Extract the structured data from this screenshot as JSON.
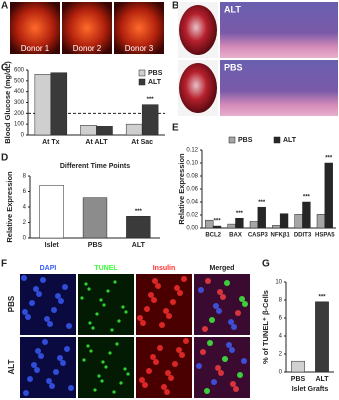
{
  "panels": {
    "A": {
      "letter": "A",
      "images": [
        "Donor 1",
        "Donor 2",
        "Donor 3"
      ]
    },
    "B": {
      "letter": "B",
      "images": [
        "ALT",
        "PBS"
      ]
    },
    "F": {
      "letter": "F",
      "columns": [
        "DAPI",
        "TUNEL",
        "Insulin",
        "Merged"
      ],
      "rows": [
        "PBS",
        "ALT"
      ]
    }
  },
  "chart_data": [
    {
      "panel": "C",
      "type": "bar",
      "ylabel": "Blood Glucose (mg/dL)",
      "categories": [
        "At Tx",
        "At ALT",
        "At Sac"
      ],
      "series": [
        {
          "name": "PBS",
          "color": "#cfcfcf",
          "values": [
            560,
            90,
            100
          ],
          "significance": [
            null,
            null,
            null
          ]
        },
        {
          "name": "ALT",
          "color": "#3a3a3a",
          "values": [
            575,
            80,
            280
          ],
          "significance": [
            null,
            null,
            "***"
          ]
        }
      ],
      "ylim": [
        0,
        600
      ],
      "yticks": [
        0,
        100,
        200,
        300,
        400,
        500,
        600
      ],
      "reference_line": 200,
      "legend": "upper right"
    },
    {
      "panel": "D",
      "type": "bar",
      "title": "Different Time Points",
      "ylabel": "Relative Expression",
      "categories": [
        "Islet",
        "PBS",
        "ALT"
      ],
      "values": [
        6.8,
        5.2,
        2.8
      ],
      "colors": [
        "#ffffff",
        "#8c8c8c",
        "#3a3a3a"
      ],
      "significance": [
        null,
        null,
        "***"
      ],
      "ylim": [
        0,
        8
      ],
      "yticks": [
        0,
        2,
        4,
        6,
        8
      ]
    },
    {
      "panel": "E",
      "type": "bar",
      "ylabel": "Relative Expression",
      "categories": [
        "BCL2",
        "BAX",
        "CASP3",
        "NFKβ1",
        "DDIT3",
        "HSPA5"
      ],
      "series": [
        {
          "name": "PBS",
          "color": "#a6a6a6",
          "values": [
            0.012,
            0.006,
            0.01,
            0.004,
            0.021,
            0.021
          ],
          "significance": [
            null,
            null,
            null,
            null,
            null,
            null
          ]
        },
        {
          "name": "ALT",
          "color": "#262626",
          "values": [
            0.003,
            0.015,
            0.032,
            0.022,
            0.04,
            0.1
          ],
          "significance": [
            "***",
            "***",
            "***",
            null,
            "***",
            "***"
          ]
        }
      ],
      "ylim": [
        0,
        0.12
      ],
      "yticks": [
        {
          "value": 0,
          "label": "0.00"
        },
        {
          "value": 0.02,
          "label": "0.02"
        },
        {
          "value": 0.04,
          "label": "0.04"
        },
        {
          "value": 0.06,
          "label": "0.06"
        },
        {
          "value": 0.08,
          "label": "0.08"
        },
        {
          "value": 0.1,
          "label": "0.10"
        },
        {
          "value": 0.12,
          "label": "0.12"
        }
      ],
      "legend": "upper center"
    },
    {
      "panel": "G",
      "type": "bar",
      "ylabel": "% of TUNEL⁺ β-Cells",
      "xlabel": "Islet Grafts",
      "categories": [
        "PBS",
        "ALT"
      ],
      "values": [
        1.2,
        7.8
      ],
      "colors": [
        "#d0d0d0",
        "#3a3a3a"
      ],
      "significance": [
        null,
        "***"
      ],
      "ylim": [
        0,
        10
      ],
      "yticks": [
        0,
        2,
        4,
        6,
        8,
        10
      ]
    }
  ]
}
